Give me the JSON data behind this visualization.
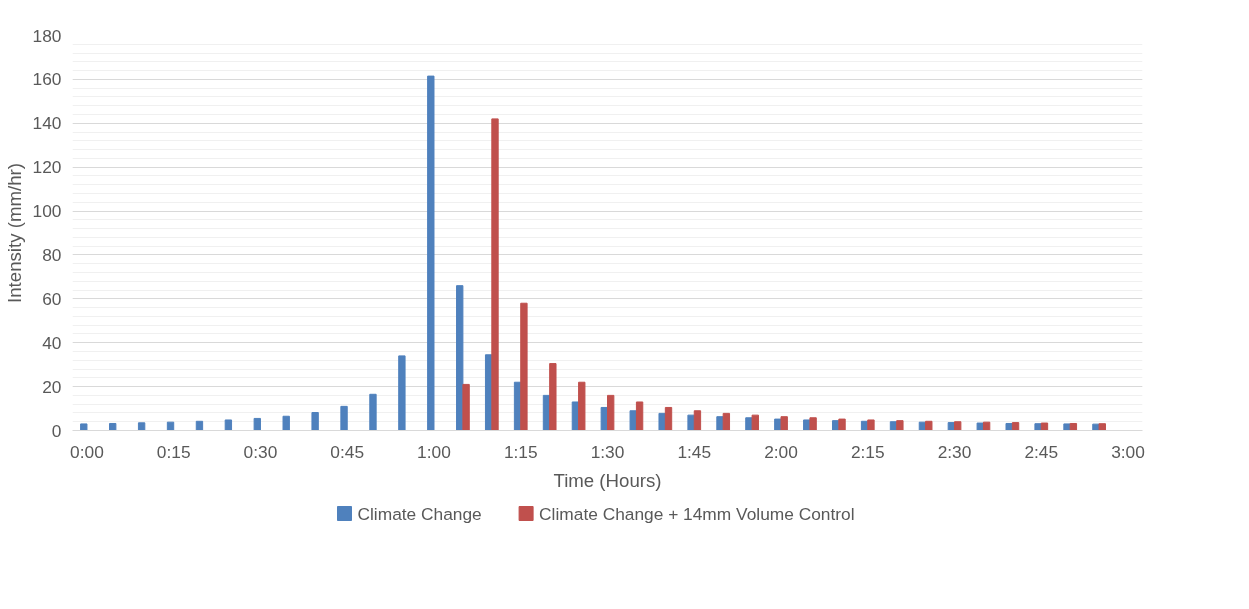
{
  "chart_data": {
    "type": "bar",
    "xlabel": "Time (Hours)",
    "ylabel": "Intensity (mm/hr)",
    "categories": [
      "0:00",
      null,
      null,
      "0:15",
      null,
      null,
      "0:30",
      null,
      null,
      "0:45",
      null,
      null,
      "1:00",
      null,
      null,
      "1:15",
      null,
      null,
      "1:30",
      null,
      null,
      "1:45",
      null,
      null,
      "2:00",
      null,
      null,
      "2:15",
      null,
      null,
      "2:30",
      null,
      null,
      "2:45",
      null,
      null,
      "3:00"
    ],
    "series": [
      {
        "name": "Climate Change",
        "color": "#4f81bd",
        "values": [
          3,
          3.2,
          3.5,
          3.8,
          4.2,
          4.8,
          5.5,
          6.5,
          8.2,
          11,
          16.5,
          34,
          161.5,
          66,
          34.5,
          22,
          16,
          13,
          10.5,
          9,
          7.8,
          7,
          6.3,
          5.8,
          5.2,
          4.8,
          4.5,
          4.2,
          4,
          3.8,
          3.6,
          3.4,
          3.2,
          3.1,
          3,
          2.9,
          null
        ]
      },
      {
        "name": "Climate Change + 14mm Volume Control",
        "color": "#c0504d",
        "values": [
          null,
          null,
          null,
          null,
          null,
          null,
          null,
          null,
          null,
          null,
          null,
          null,
          null,
          21,
          142,
          58,
          30.5,
          22,
          16,
          13,
          10.5,
          9,
          7.8,
          7,
          6.3,
          5.8,
          5.2,
          4.8,
          4.5,
          4.2,
          4,
          3.8,
          3.6,
          3.4,
          3.2,
          3.1,
          null
        ]
      }
    ],
    "ylim": [
      0,
      180
    ],
    "yticks": [
      0,
      20,
      40,
      60,
      80,
      100,
      120,
      140,
      160,
      180
    ],
    "grid": "y",
    "legend": "bottom"
  }
}
